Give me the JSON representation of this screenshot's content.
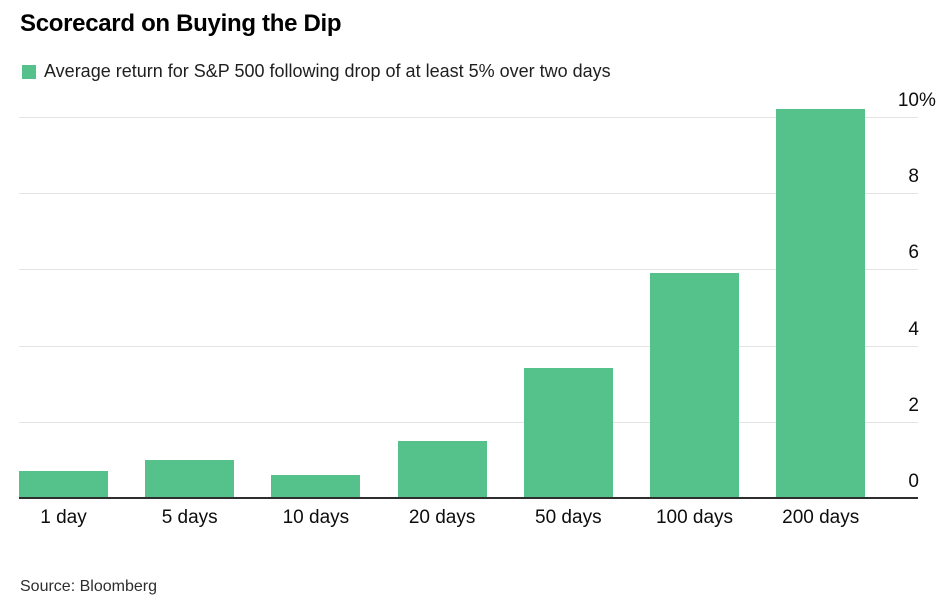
{
  "title": "Scorecard on Buying the Dip",
  "legend": {
    "label": "Average return for S&P 500 following drop of at least 5% over two days",
    "swatch_color": "#55c28b"
  },
  "source": "Source: Bloomberg",
  "colors": {
    "bar": "#55c28b",
    "gridline": "#e4e4e4",
    "baseline": "#2e2e2e",
    "text": "#000000"
  },
  "chart_data": {
    "type": "bar",
    "title": "Scorecard on Buying the Dip",
    "series_label": "Average return for S&P 500 following drop of at least 5% over two days",
    "categories": [
      "1 day",
      "5 days",
      "10 days",
      "20 days",
      "50 days",
      "100 days",
      "200 days"
    ],
    "values": [
      0.7,
      1.0,
      0.6,
      1.5,
      3.4,
      5.9,
      10.2
    ],
    "unit": "%",
    "xlabel": "",
    "ylabel": "",
    "yticks": [
      0,
      2,
      4,
      6,
      8,
      10
    ],
    "ytick_labels": [
      "0",
      "2",
      "4",
      "6",
      "8",
      "10%"
    ],
    "ylim": [
      0,
      10.5
    ],
    "grid": "horizontal",
    "legend_position": "top-left",
    "ytick_position": "right-above-gridline",
    "source": "Source: Bloomberg"
  }
}
